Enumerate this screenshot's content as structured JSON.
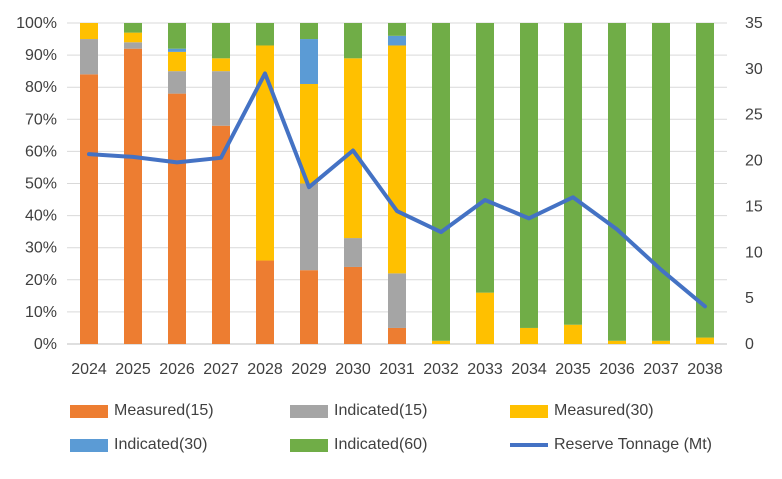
{
  "chart_data": {
    "type": "bar",
    "stacked": "percent",
    "title": "",
    "xlabel": "",
    "ylabel": "",
    "categories": [
      "2024",
      "2025",
      "2026",
      "2027",
      "2028",
      "2029",
      "2030",
      "2031",
      "2032",
      "2033",
      "2034",
      "2035",
      "2036",
      "2037",
      "2038"
    ],
    "left_axis": {
      "min": 0,
      "max": 100,
      "step": 10,
      "suffix": "%"
    },
    "right_axis": {
      "min": 0,
      "max": 35,
      "step": 5
    },
    "series": [
      {
        "name": "Measured(15)",
        "color": "#ED7D31",
        "values": [
          84,
          92,
          78,
          68,
          26,
          23,
          24,
          5,
          0,
          0,
          0,
          0,
          0,
          0,
          0
        ]
      },
      {
        "name": "Indicated(15)",
        "color": "#A5A5A5",
        "values": [
          11,
          2,
          7,
          17,
          0,
          27,
          9,
          17,
          0,
          0,
          0,
          0,
          0,
          0,
          0
        ]
      },
      {
        "name": "Measured(30)",
        "color": "#FFC000",
        "values": [
          5,
          3,
          6,
          4,
          67,
          31,
          56,
          71,
          1,
          16,
          5,
          6,
          1,
          1,
          2
        ]
      },
      {
        "name": "Indicated(30)",
        "color": "#5B9BD5",
        "values": [
          0,
          0,
          1,
          0,
          0,
          14,
          0,
          3,
          0,
          0,
          0,
          0,
          0,
          0,
          0
        ]
      },
      {
        "name": "Indicated(60)",
        "color": "#70AD47",
        "values": [
          0,
          3,
          8,
          11,
          7,
          5,
          11,
          4,
          99,
          84,
          95,
          94,
          99,
          99,
          98
        ]
      }
    ],
    "line_series": {
      "name": "Reserve Tonnage (Mt)",
      "color": "#4472C4",
      "axis": "right",
      "values": [
        20.7,
        20.4,
        19.8,
        20.3,
        29.5,
        17.1,
        21.1,
        14.5,
        12.2,
        15.7,
        13.7,
        16.0,
        12.5,
        8.1,
        4.1
      ]
    },
    "grid": true,
    "legend": "bottom"
  }
}
